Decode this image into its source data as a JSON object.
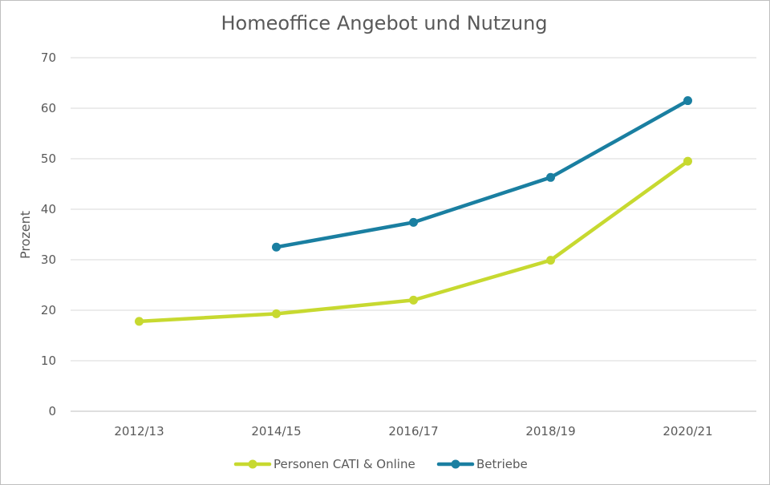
{
  "chart_data": {
    "type": "line",
    "title": "Homeoffice Angebot und Nutzung",
    "xlabel": "",
    "ylabel": "Prozent",
    "categories": [
      "2012/13",
      "2014/15",
      "2016/17",
      "2018/19",
      "2020/21"
    ],
    "ylim": [
      0,
      70
    ],
    "yticks": [
      0,
      10,
      20,
      30,
      40,
      50,
      60,
      70
    ],
    "grid": true,
    "legend_position": "bottom",
    "series": [
      {
        "name": "Personen CATI & Online",
        "color": "#c7d930",
        "values": [
          17.8,
          19.3,
          22.0,
          29.9,
          49.5
        ]
      },
      {
        "name": "Betriebe",
        "color": "#1a7fa1",
        "values": [
          null,
          32.5,
          37.4,
          46.3,
          61.5
        ]
      }
    ]
  }
}
